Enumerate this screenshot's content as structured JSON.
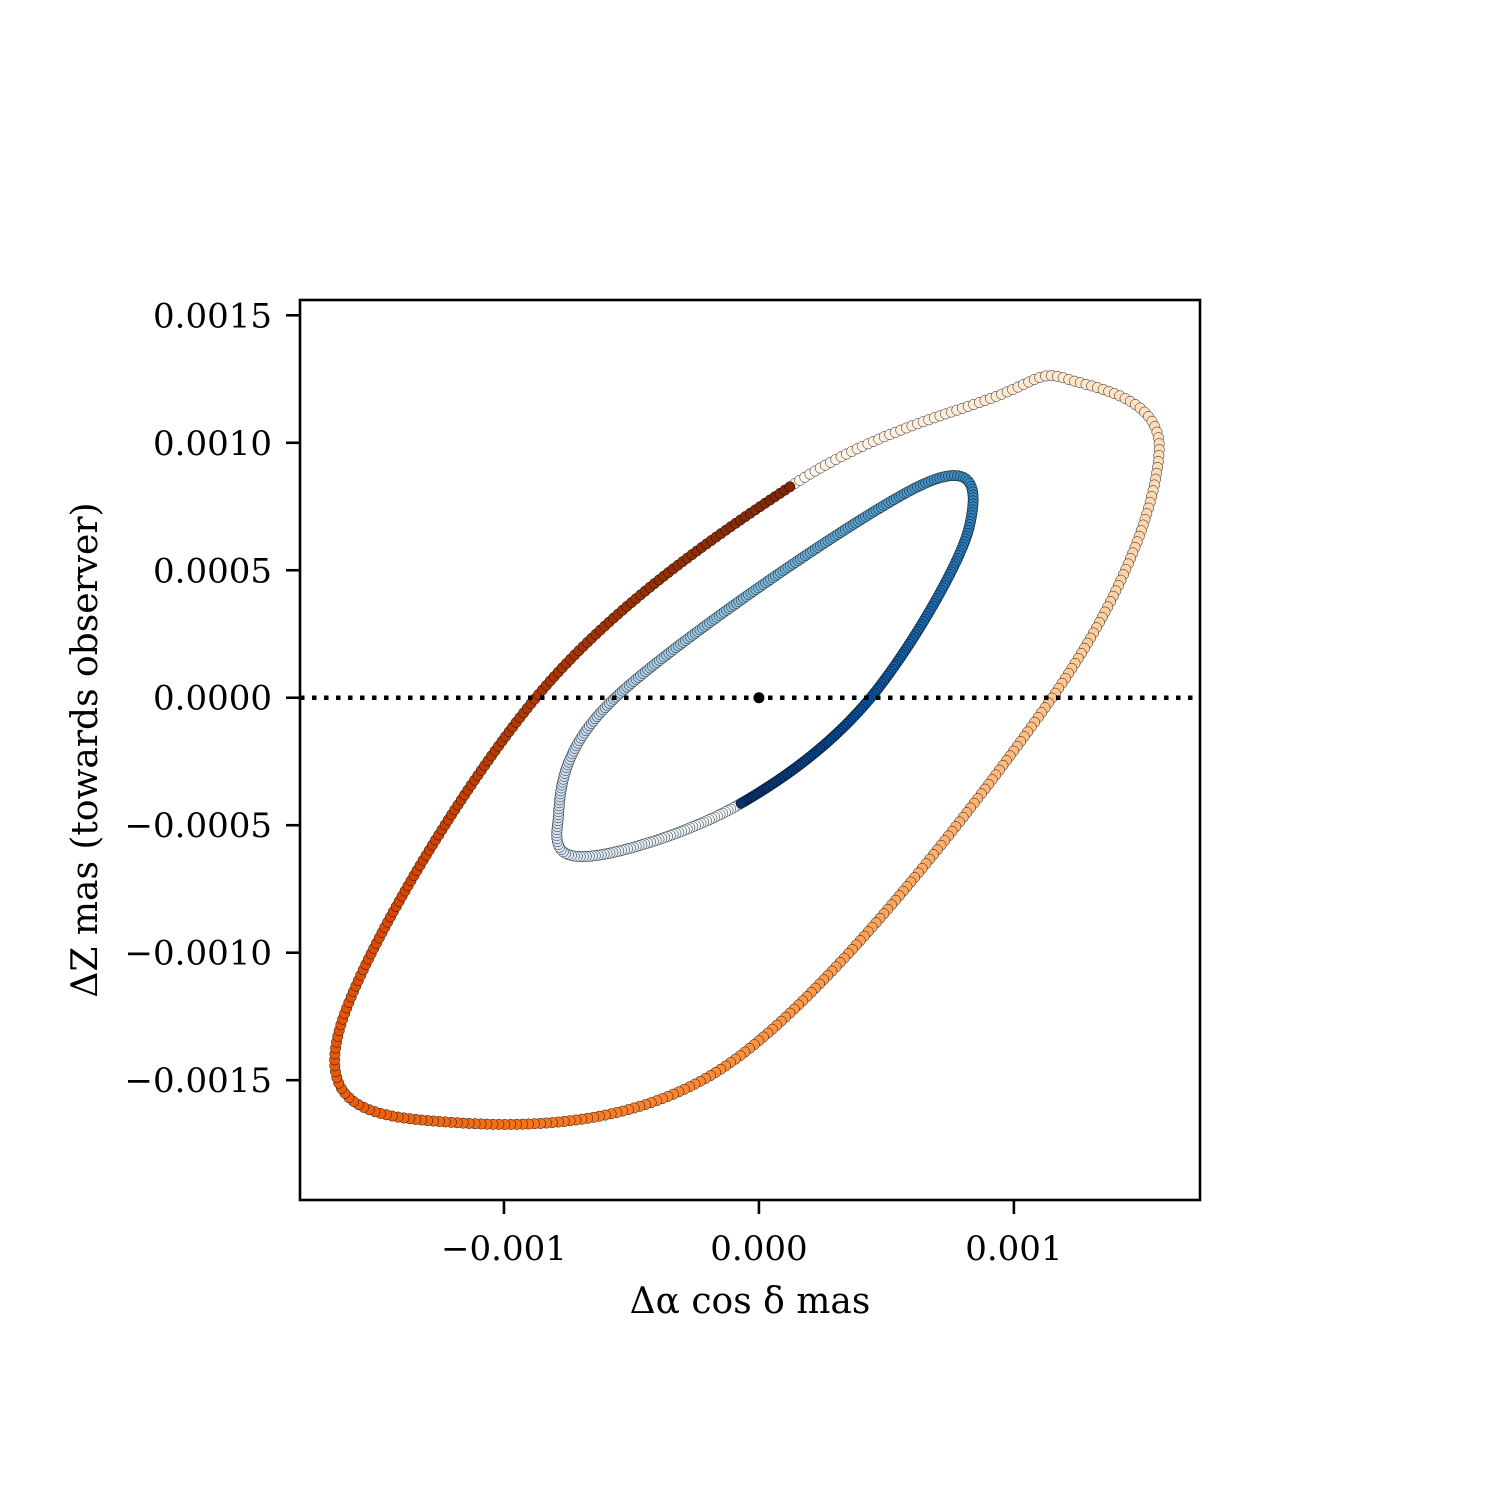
{
  "chart_data": {
    "type": "scatter",
    "xlabel": "Δα cos δ mas",
    "ylabel": "ΔZ mas (towards observer)",
    "xlim": [
      -0.0018,
      0.00173
    ],
    "ylim": [
      -0.00197,
      0.00156
    ],
    "xticks": [
      -0.001,
      0.0,
      0.001
    ],
    "xtick_labels": [
      "−0.001",
      "0.000",
      "0.001"
    ],
    "yticks": [
      -0.0015,
      -0.001,
      -0.0005,
      0.0,
      0.0005,
      0.001,
      0.0015
    ],
    "ytick_labels": [
      "−0.0015",
      "−0.0010",
      "−0.0005",
      "0.0000",
      "0.0005",
      "0.0010",
      "0.0015"
    ],
    "grid": false,
    "legend": "none",
    "reference_line": {
      "y": 0.0,
      "style": "dotted",
      "color": "#000000"
    },
    "center_marker": {
      "x": 0.0,
      "y": 0.0,
      "color": "#000000"
    },
    "series": [
      {
        "colormap": "Oranges",
        "points": 400,
        "ellipse_points": [
          [
            0.000141,
            0.00084
          ],
          [
            0.000925,
            0.00118
          ],
          [
            0.00121,
            0.00125
          ],
          [
            0.00157,
            0.00097
          ],
          [
            0.00115,
            0.0
          ],
          [
            -0.000124,
            -0.00144
          ],
          [
            -0.00128,
            -0.00166
          ],
          [
            -0.00165,
            -0.00132
          ],
          [
            -0.000875,
            0.0
          ],
          [
            0.000141,
            0.00084
          ]
        ]
      },
      {
        "colormap": "Blues",
        "points": 400,
        "ellipse_points": [
          [
            -8e-05,
            -0.00042
          ],
          [
            -0.000647,
            -0.00062
          ],
          [
            -0.00079,
            -0.0005
          ],
          [
            -0.000564,
            0.0
          ],
          [
            0.000628,
            0.00083
          ],
          [
            0.000825,
            0.00067
          ],
          [
            0.000438,
            0.0
          ],
          [
            -8e-05,
            -0.00042
          ]
        ]
      }
    ]
  }
}
